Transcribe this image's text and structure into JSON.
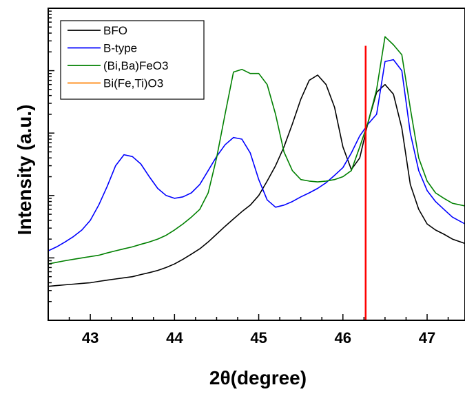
{
  "chart_data": {
    "type": "line",
    "xlabel": "2θ(degree)",
    "ylabel": "Intensity (a.u.)",
    "xlim": [
      42.5,
      47.45
    ],
    "ylim": [
      1,
      100000
    ],
    "y_scale": "log",
    "x_ticks": [
      43,
      44,
      45,
      46,
      47
    ],
    "legend_position": "top-left",
    "grid": false,
    "series": [
      {
        "name": "BFO",
        "color": "#000000",
        "x": [
          42.5,
          42.6,
          42.7,
          42.8,
          42.9,
          43.0,
          43.1,
          43.2,
          43.3,
          43.4,
          43.5,
          43.6,
          43.7,
          43.8,
          43.9,
          44.0,
          44.1,
          44.2,
          44.3,
          44.4,
          44.5,
          44.6,
          44.7,
          44.8,
          44.9,
          45.0,
          45.1,
          45.2,
          45.3,
          45.4,
          45.5,
          45.6,
          45.7,
          45.8,
          45.9,
          46.0,
          46.1,
          46.2,
          46.3,
          46.4,
          46.5,
          46.6,
          46.7,
          46.8,
          46.9,
          47.0,
          47.1,
          47.2,
          47.3,
          47.45
        ],
        "y": [
          3.5,
          3.6,
          3.7,
          3.8,
          3.9,
          4.0,
          4.2,
          4.4,
          4.6,
          4.8,
          5.0,
          5.4,
          5.8,
          6.3,
          7.0,
          8.0,
          9.5,
          11.5,
          14,
          18,
          24,
          32,
          42,
          55,
          70,
          100,
          170,
          300,
          600,
          1400,
          3500,
          7000,
          8500,
          6000,
          2600,
          600,
          260,
          400,
          1500,
          4500,
          6000,
          4200,
          1200,
          150,
          60,
          35,
          28,
          24,
          20,
          17
        ]
      },
      {
        "name": "B-type",
        "color": "#0000ff",
        "x": [
          42.5,
          42.6,
          42.7,
          42.8,
          42.9,
          43.0,
          43.1,
          43.2,
          43.3,
          43.4,
          43.5,
          43.6,
          43.7,
          43.8,
          43.9,
          44.0,
          44.1,
          44.2,
          44.3,
          44.4,
          44.5,
          44.6,
          44.7,
          44.8,
          44.9,
          45.0,
          45.1,
          45.2,
          45.3,
          45.4,
          45.5,
          45.6,
          45.7,
          45.8,
          45.9,
          46.0,
          46.1,
          46.2,
          46.3,
          46.4,
          46.5,
          46.6,
          46.7,
          46.8,
          46.9,
          47.0,
          47.1,
          47.2,
          47.3,
          47.45
        ],
        "y": [
          13,
          15,
          18,
          22,
          28,
          40,
          70,
          140,
          300,
          450,
          420,
          320,
          200,
          130,
          100,
          90,
          95,
          110,
          150,
          250,
          420,
          650,
          850,
          800,
          480,
          180,
          85,
          65,
          70,
          80,
          95,
          110,
          130,
          160,
          210,
          280,
          480,
          900,
          1400,
          2000,
          14000,
          15000,
          10000,
          1000,
          250,
          120,
          80,
          60,
          45,
          35
        ]
      },
      {
        "name": "(Bi,Ba)FeO3",
        "color": "#008000",
        "x": [
          42.5,
          42.6,
          42.7,
          42.8,
          42.9,
          43.0,
          43.1,
          43.2,
          43.3,
          43.4,
          43.5,
          43.6,
          43.7,
          43.8,
          43.9,
          44.0,
          44.1,
          44.2,
          44.3,
          44.4,
          44.5,
          44.6,
          44.7,
          44.8,
          44.9,
          45.0,
          45.1,
          45.2,
          45.3,
          45.4,
          45.5,
          45.6,
          45.7,
          45.8,
          45.9,
          46.0,
          46.1,
          46.2,
          46.3,
          46.4,
          46.5,
          46.6,
          46.7,
          46.8,
          46.9,
          47.0,
          47.1,
          47.2,
          47.3,
          47.45
        ],
        "y": [
          8,
          8.5,
          9,
          9.5,
          10,
          10.5,
          11,
          12,
          13,
          14,
          15,
          16.5,
          18,
          20,
          23,
          28,
          35,
          45,
          60,
          110,
          400,
          2000,
          9500,
          10500,
          9000,
          9000,
          6000,
          2000,
          500,
          250,
          180,
          170,
          165,
          170,
          180,
          200,
          250,
          600,
          1500,
          5000,
          35000,
          26000,
          18000,
          2500,
          400,
          170,
          110,
          90,
          75,
          68
        ]
      },
      {
        "name": "Bi(Fe,Ti)O3",
        "color": "#ff8000",
        "x": [],
        "y": []
      }
    ],
    "annotations": [
      {
        "type": "vertical_line",
        "x": 46.27,
        "y_top": 25000,
        "color": "#ff0000"
      }
    ]
  }
}
